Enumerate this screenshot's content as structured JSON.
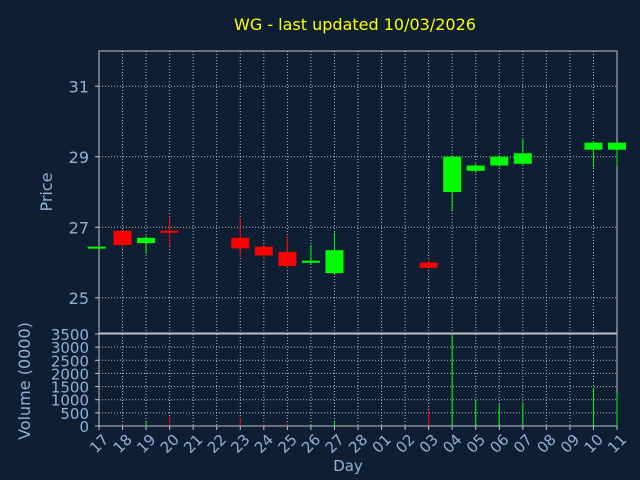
{
  "chart_data": {
    "type": "candlestick",
    "title": "WG - last updated 10/03/2026",
    "xlabel": "Day",
    "x_ticks": [
      "17",
      "18",
      "19",
      "20",
      "21",
      "22",
      "23",
      "24",
      "25",
      "26",
      "27",
      "28",
      "01",
      "02",
      "03",
      "04",
      "05",
      "06",
      "07",
      "08",
      "09",
      "10",
      "11"
    ],
    "price_panel": {
      "ylabel": "Price",
      "ylim": [
        24,
        32
      ],
      "y_ticks": [
        25,
        27,
        29,
        31
      ],
      "grid": true
    },
    "volume_panel": {
      "ylabel": "Volume (0000)",
      "ylim": [
        0,
        3500
      ],
      "y_ticks": [
        0,
        500,
        1000,
        1500,
        2000,
        2500,
        3000,
        3500
      ],
      "grid": true
    },
    "candles": [
      {
        "day": 16.9,
        "open": 26.45,
        "close": 26.45,
        "high": 26.45,
        "low": 26.45,
        "volume": 0,
        "dir": "up"
      },
      {
        "day": 18.0,
        "open": 26.9,
        "close": 26.5,
        "high": 26.9,
        "low": 26.4,
        "volume": 50,
        "dir": "down"
      },
      {
        "day": 19.0,
        "open": 26.55,
        "close": 26.7,
        "high": 26.75,
        "low": 26.25,
        "volume": 150,
        "dir": "up"
      },
      {
        "day": 20.0,
        "open": 26.9,
        "close": 26.85,
        "high": 27.3,
        "low": 26.45,
        "volume": 350,
        "dir": "down"
      },
      {
        "day": 23.0,
        "open": 26.7,
        "close": 26.4,
        "high": 27.25,
        "low": 26.15,
        "volume": 300,
        "dir": "down"
      },
      {
        "day": 24.0,
        "open": 26.45,
        "close": 26.2,
        "high": 26.5,
        "low": 26.1,
        "volume": 80,
        "dir": "down"
      },
      {
        "day": 25.0,
        "open": 26.3,
        "close": 25.9,
        "high": 26.75,
        "low": 25.85,
        "volume": 100,
        "dir": "down"
      },
      {
        "day": 26.0,
        "open": 26.0,
        "close": 26.05,
        "high": 26.5,
        "low": 25.95,
        "volume": 80,
        "dir": "up"
      },
      {
        "day": 27.0,
        "open": 25.7,
        "close": 26.35,
        "high": 26.85,
        "low": 25.65,
        "volume": 200,
        "dir": "up"
      },
      {
        "day": 31.0,
        "open": 26.0,
        "close": 25.85,
        "high": 26.05,
        "low": 25.85,
        "volume": 600,
        "dir": "down"
      },
      {
        "day": 32.0,
        "open": 28.0,
        "close": 29.0,
        "high": 29.05,
        "low": 27.45,
        "volume": 3450,
        "dir": "up"
      },
      {
        "day": 33.0,
        "open": 28.6,
        "close": 28.75,
        "high": 28.8,
        "low": 28.55,
        "volume": 1000,
        "dir": "up"
      },
      {
        "day": 34.0,
        "open": 28.75,
        "close": 29.0,
        "high": 29.05,
        "low": 28.7,
        "volume": 850,
        "dir": "up"
      },
      {
        "day": 35.0,
        "open": 28.8,
        "close": 29.1,
        "high": 29.5,
        "low": 28.75,
        "volume": 900,
        "dir": "up"
      },
      {
        "day": 38.0,
        "open": 29.2,
        "close": 29.4,
        "high": 29.45,
        "low": 28.7,
        "volume": 1450,
        "dir": "up"
      },
      {
        "day": 39.0,
        "open": 29.2,
        "close": 29.4,
        "high": 29.4,
        "low": 28.75,
        "volume": 1250,
        "dir": "up"
      }
    ],
    "colors": {
      "background": "#0f1f33",
      "title": "#ffff00",
      "axis_text": "#8fb2d9",
      "up": "#00ff00",
      "down": "#ff0000",
      "grid": "#c0c0c0"
    }
  }
}
